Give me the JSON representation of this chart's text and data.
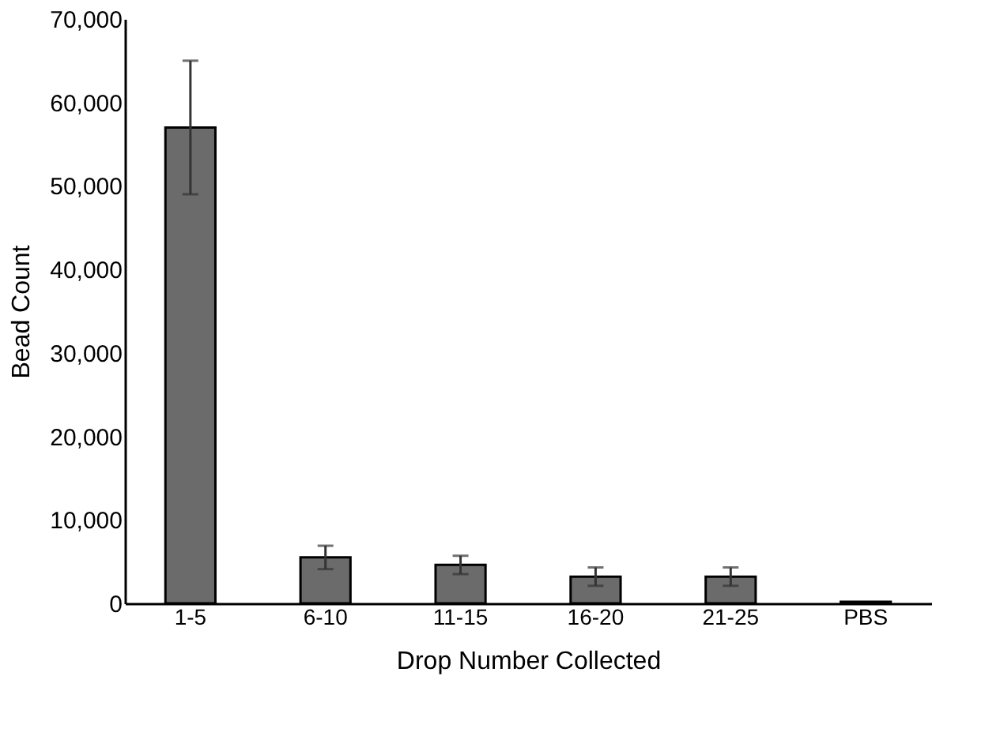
{
  "chart_data": {
    "type": "bar",
    "xlabel": "Drop Number Collected",
    "ylabel": "Bead Count",
    "categories": [
      "1-5",
      "6-10",
      "11-15",
      "16-20",
      "21-25",
      "PBS"
    ],
    "values": [
      57000,
      5500,
      4600,
      3200,
      3200,
      200
    ],
    "errors": [
      8000,
      1400,
      1100,
      1100,
      1100,
      null
    ],
    "color": "#6b6b6b",
    "ylim": [
      0,
      70000
    ],
    "yticks": [
      0,
      {
        "value": 10000,
        "label": "10,000"
      },
      {
        "value": 20000,
        "label": "20,000"
      },
      {
        "value": 30000,
        "label": "30,000"
      },
      {
        "value": 40000,
        "label": "40,000"
      },
      {
        "value": 50000,
        "label": "50,000"
      },
      {
        "value": 60000,
        "label": "60,000"
      },
      {
        "value": 70000,
        "label": "70,000"
      }
    ],
    "grid": false
  }
}
